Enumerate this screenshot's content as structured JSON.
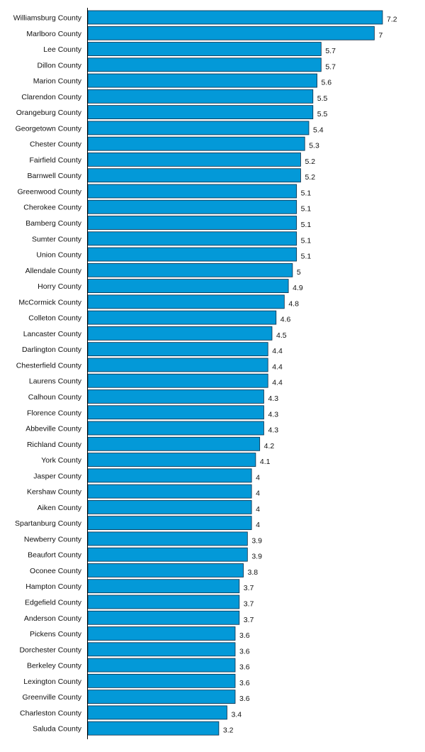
{
  "chart_data": {
    "type": "bar",
    "orientation": "horizontal",
    "categories": [
      "Williamsburg County",
      "Marlboro County",
      "Lee County",
      "Dillon County",
      "Marion County",
      "Clarendon County",
      "Orangeburg County",
      "Georgetown County",
      "Chester County",
      "Fairfield County",
      "Barnwell County",
      "Greenwood County",
      "Cherokee County",
      "Bamberg County",
      "Sumter County",
      "Union County",
      "Allendale County",
      "Horry County",
      "McCormick County",
      "Colleton County",
      "Lancaster County",
      "Darlington County",
      "Chesterfield County",
      "Laurens County",
      "Calhoun County",
      "Florence County",
      "Abbeville County",
      "Richland County",
      "York County",
      "Jasper County",
      "Kershaw County",
      "Aiken County",
      "Spartanburg County",
      "Newberry County",
      "Beaufort County",
      "Oconee County",
      "Hampton County",
      "Edgefield County",
      "Anderson County",
      "Pickens County",
      "Dorchester County",
      "Berkeley County",
      "Lexington County",
      "Greenville County",
      "Charleston County",
      "Saluda County"
    ],
    "values": [
      7.2,
      7,
      5.7,
      5.7,
      5.6,
      5.5,
      5.5,
      5.4,
      5.3,
      5.2,
      5.2,
      5.1,
      5.1,
      5.1,
      5.1,
      5.1,
      5,
      4.9,
      4.8,
      4.6,
      4.5,
      4.4,
      4.4,
      4.4,
      4.3,
      4.3,
      4.3,
      4.2,
      4.1,
      4,
      4,
      4,
      4,
      3.9,
      3.9,
      3.8,
      3.7,
      3.7,
      3.7,
      3.6,
      3.6,
      3.6,
      3.6,
      3.6,
      3.4,
      3.2
    ],
    "value_labels": [
      "7.2",
      "7",
      "5.7",
      "5.7",
      "5.6",
      "5.5",
      "5.5",
      "5.4",
      "5.3",
      "5.2",
      "5.2",
      "5.1",
      "5.1",
      "5.1",
      "5.1",
      "5.1",
      "5",
      "4.9",
      "4.8",
      "4.6",
      "4.5",
      "4.4",
      "4.4",
      "4.4",
      "4.3",
      "4.3",
      "4.3",
      "4.2",
      "4.1",
      "4",
      "4",
      "4",
      "4",
      "3.9",
      "3.9",
      "3.8",
      "3.7",
      "3.7",
      "3.7",
      "3.6",
      "3.6",
      "3.6",
      "3.6",
      "3.6",
      "3.4",
      "3.2"
    ],
    "xlim": [
      0,
      7.2
    ],
    "grid": false,
    "colors": {
      "bar": "#0399d8",
      "bar_border": "#0a2a45"
    }
  }
}
